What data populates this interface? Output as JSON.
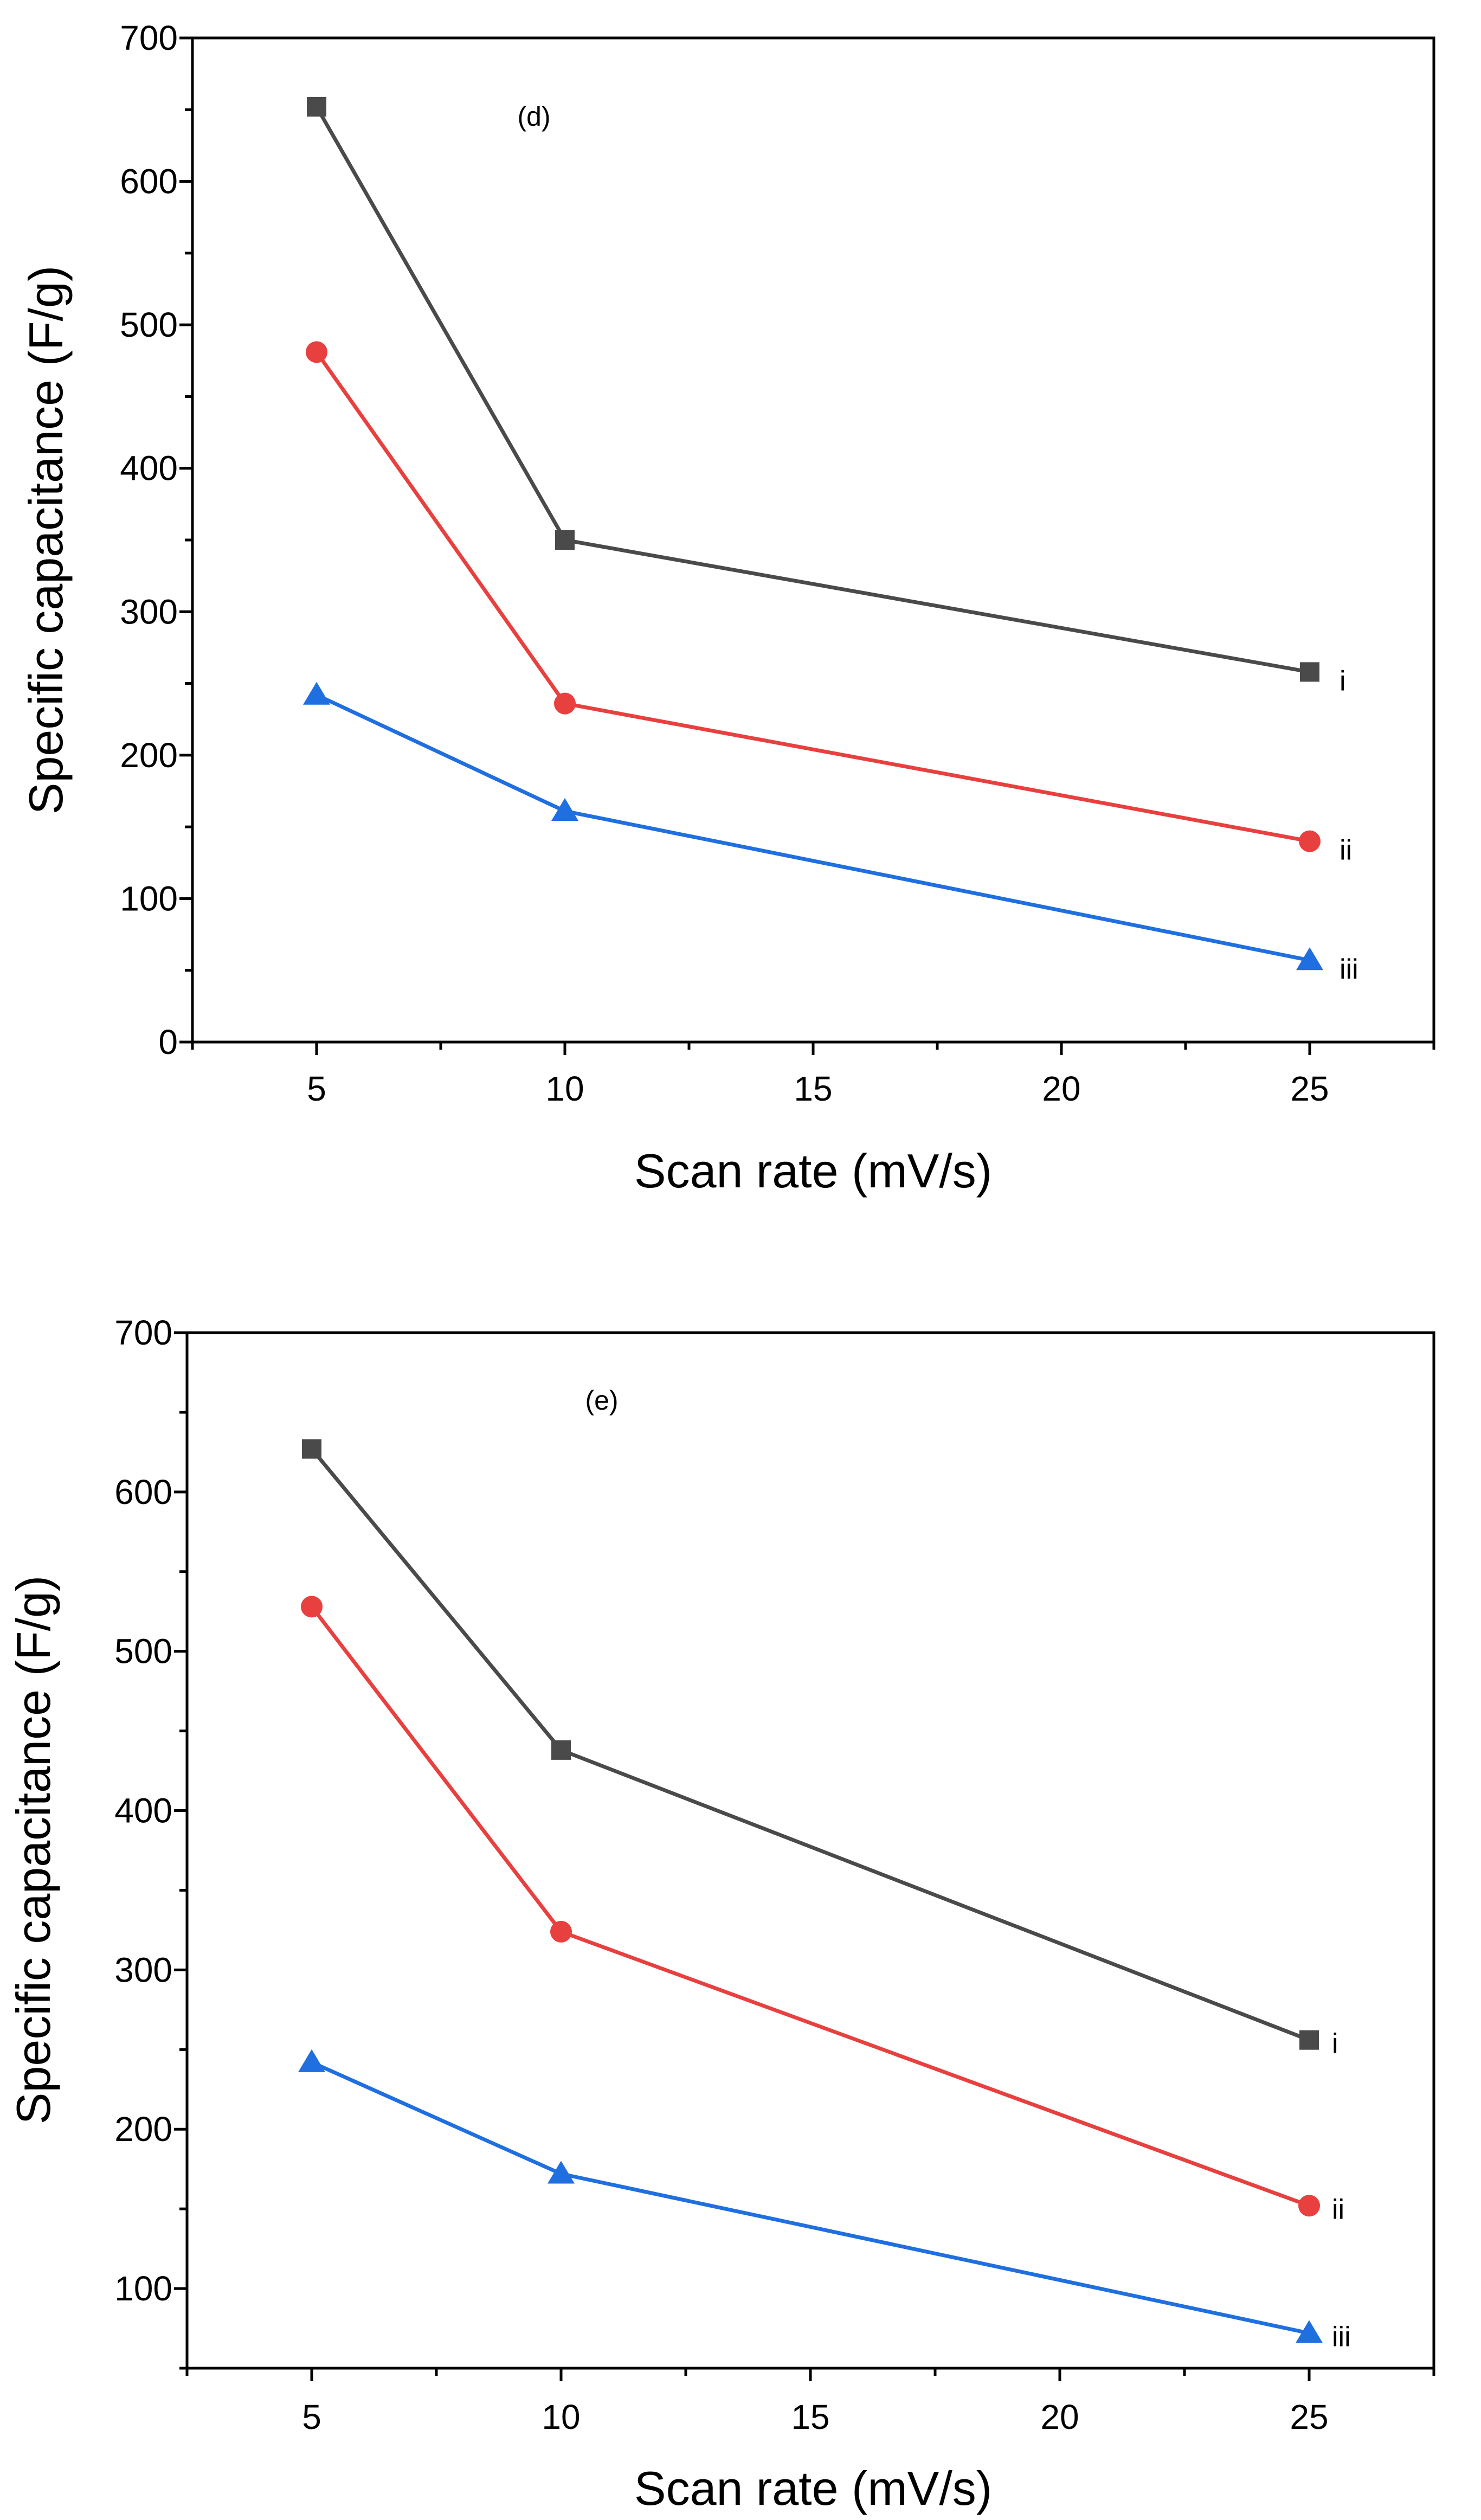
{
  "chart_data": [
    {
      "type": "line",
      "panel_label": "(d)",
      "xlabel": "Scan rate (mV/s)",
      "ylabel": "Specific capacitance (F/g)",
      "xlim": [
        2.5,
        27.5
      ],
      "ylim": [
        0,
        700
      ],
      "xticks": [
        5,
        10,
        15,
        20,
        25
      ],
      "yticks": [
        0,
        100,
        200,
        300,
        400,
        500,
        600,
        700
      ],
      "x": [
        5,
        10,
        25
      ],
      "series": [
        {
          "name": "i",
          "marker": "square",
          "color": "#4a4a4a",
          "values": [
            652,
            350,
            258
          ]
        },
        {
          "name": "ii",
          "marker": "circle",
          "color": "#e8403f",
          "values": [
            481,
            236,
            140
          ]
        },
        {
          "name": "iii",
          "marker": "triangle",
          "color": "#1f6fe0",
          "values": [
            242,
            161,
            57
          ]
        }
      ]
    },
    {
      "type": "line",
      "panel_label": "(e)",
      "xlabel": "Scan rate (mV/s)",
      "ylabel": "Specific capacitance (F/g)",
      "xlim": [
        2.5,
        27.5
      ],
      "ylim": [
        50,
        700
      ],
      "xticks": [
        5,
        10,
        15,
        20,
        25
      ],
      "yticks": [
        100,
        200,
        300,
        400,
        500,
        600,
        700
      ],
      "x": [
        5,
        10,
        25
      ],
      "series": [
        {
          "name": "i",
          "marker": "square",
          "color": "#4a4a4a",
          "values": [
            627,
            438,
            256
          ]
        },
        {
          "name": "ii",
          "marker": "circle",
          "color": "#e8403f",
          "values": [
            528,
            324,
            152
          ]
        },
        {
          "name": "iii",
          "marker": "triangle",
          "color": "#1f6fe0",
          "values": [
            242,
            172,
            72
          ]
        }
      ]
    }
  ]
}
